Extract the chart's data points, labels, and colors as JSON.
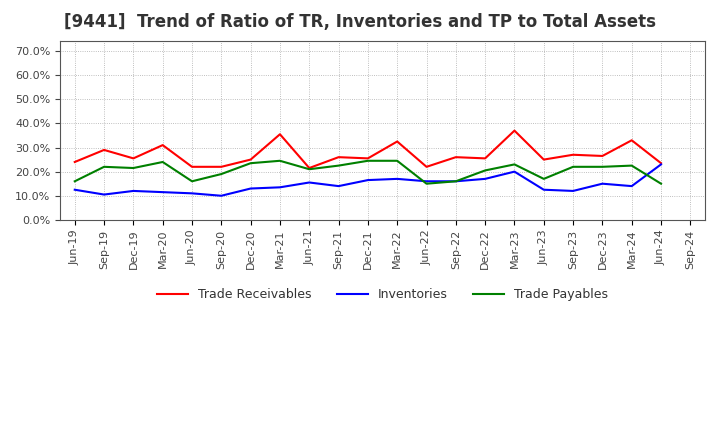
{
  "title": "[9441]  Trend of Ratio of TR, Inventories and TP to Total Assets",
  "labels": [
    "Jun-19",
    "Sep-19",
    "Dec-19",
    "Mar-20",
    "Jun-20",
    "Sep-20",
    "Dec-20",
    "Mar-21",
    "Jun-21",
    "Sep-21",
    "Dec-21",
    "Mar-22",
    "Jun-22",
    "Sep-22",
    "Dec-22",
    "Mar-23",
    "Jun-23",
    "Sep-23",
    "Dec-23",
    "Mar-24",
    "Jun-24",
    "Sep-24"
  ],
  "trade_receivables": [
    24.0,
    29.0,
    25.5,
    31.0,
    22.0,
    22.0,
    25.0,
    35.5,
    21.5,
    26.0,
    25.5,
    32.5,
    22.0,
    26.0,
    25.5,
    37.0,
    25.0,
    27.0,
    26.5,
    33.0,
    23.5,
    null
  ],
  "inventories": [
    12.5,
    10.5,
    12.0,
    11.5,
    11.0,
    10.0,
    13.0,
    13.5,
    15.5,
    14.0,
    16.5,
    17.0,
    16.0,
    16.0,
    17.0,
    20.0,
    12.5,
    12.0,
    15.0,
    14.0,
    23.0,
    null
  ],
  "trade_payables": [
    16.0,
    22.0,
    21.5,
    24.0,
    16.0,
    19.0,
    23.5,
    24.5,
    21.0,
    22.5,
    24.5,
    24.5,
    15.0,
    16.0,
    20.5,
    23.0,
    17.0,
    22.0,
    22.0,
    22.5,
    15.0,
    null
  ],
  "tr_color": "#FF0000",
  "inv_color": "#0000FF",
  "tp_color": "#008000",
  "legend_labels": [
    "Trade Receivables",
    "Inventories",
    "Trade Payables"
  ],
  "background_color": "#FFFFFF",
  "plot_bg_color": "#FFFFFF",
  "grid_color": "#AAAAAA",
  "title_fontsize": 12,
  "tick_fontsize": 8,
  "legend_fontsize": 9
}
